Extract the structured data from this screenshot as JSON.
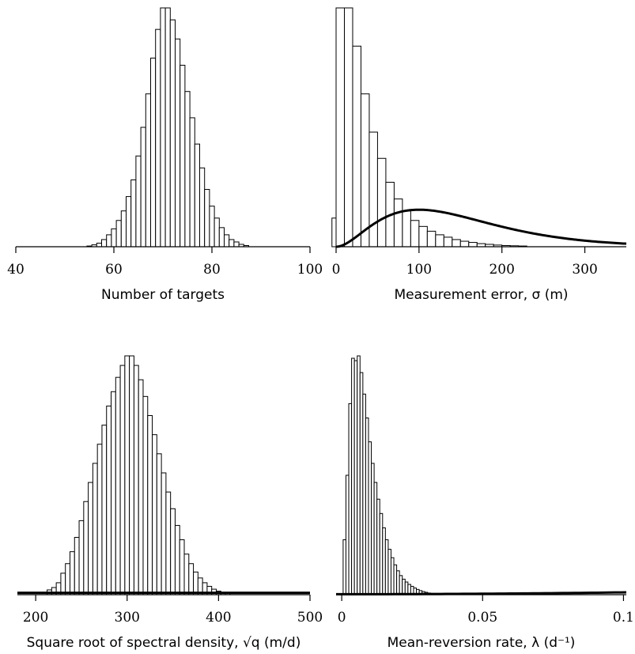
{
  "chart_data": [
    {
      "type": "bar",
      "panel": "top-left",
      "xlabel": "Number of targets",
      "xlim": [
        40,
        100
      ],
      "xticks": [
        40,
        60,
        80,
        100
      ],
      "bin_width": 1,
      "bins": [
        [
          55,
          0.3
        ],
        [
          56,
          0.8
        ],
        [
          57,
          1.5
        ],
        [
          58,
          3
        ],
        [
          59,
          5
        ],
        [
          60,
          7.5
        ],
        [
          61,
          11
        ],
        [
          62,
          15
        ],
        [
          63,
          21
        ],
        [
          64,
          28
        ],
        [
          65,
          38
        ],
        [
          66,
          50
        ],
        [
          67,
          64
        ],
        [
          68,
          79
        ],
        [
          69,
          91
        ],
        [
          70,
          100
        ],
        [
          71,
          100
        ],
        [
          72,
          95
        ],
        [
          73,
          87
        ],
        [
          74,
          76
        ],
        [
          75,
          65
        ],
        [
          76,
          54
        ],
        [
          77,
          43
        ],
        [
          78,
          33
        ],
        [
          79,
          24
        ],
        [
          80,
          17
        ],
        [
          81,
          12
        ],
        [
          82,
          8
        ],
        [
          83,
          5
        ],
        [
          84,
          3
        ],
        [
          85,
          2
        ],
        [
          86,
          1
        ],
        [
          87,
          0.5
        ]
      ],
      "prior_curve": null
    },
    {
      "type": "bar",
      "panel": "top-right",
      "xlabel": "Measurement error, σ (m)",
      "xlim": [
        0,
        350
      ],
      "xticks": [
        0,
        100,
        200,
        300
      ],
      "bin_width": 10,
      "bins": [
        [
          0,
          12
        ],
        [
          5,
          100
        ],
        [
          15,
          100
        ],
        [
          25,
          84
        ],
        [
          35,
          64
        ],
        [
          45,
          48
        ],
        [
          55,
          37
        ],
        [
          65,
          27
        ],
        [
          75,
          20
        ],
        [
          85,
          15
        ],
        [
          95,
          11
        ],
        [
          105,
          8.5
        ],
        [
          115,
          6.5
        ],
        [
          125,
          5
        ],
        [
          135,
          4
        ],
        [
          145,
          3
        ],
        [
          155,
          2.3
        ],
        [
          165,
          1.8
        ],
        [
          175,
          1.3
        ],
        [
          185,
          1
        ],
        [
          195,
          0.7
        ],
        [
          205,
          0.5
        ],
        [
          215,
          0.4
        ],
        [
          225,
          0.3
        ]
      ],
      "prior_curve": {
        "type": "gamma",
        "shape": 3,
        "scale": 50,
        "peak_height": 15.5
      }
    },
    {
      "type": "bar",
      "panel": "bottom-left",
      "xlabel": "Square root of spectral density, √q (m/d)",
      "xlim": [
        180,
        500
      ],
      "xticks": [
        200,
        300,
        400,
        500
      ],
      "bin_width": 5,
      "bins": [
        [
          215,
          2
        ],
        [
          220,
          3
        ],
        [
          225,
          5
        ],
        [
          230,
          9
        ],
        [
          235,
          13
        ],
        [
          240,
          18
        ],
        [
          245,
          24
        ],
        [
          250,
          31
        ],
        [
          255,
          39
        ],
        [
          260,
          47
        ],
        [
          265,
          55
        ],
        [
          270,
          63
        ],
        [
          275,
          71
        ],
        [
          280,
          79
        ],
        [
          285,
          85
        ],
        [
          290,
          91
        ],
        [
          295,
          96
        ],
        [
          300,
          100
        ],
        [
          305,
          100
        ],
        [
          310,
          96
        ],
        [
          315,
          90
        ],
        [
          320,
          83
        ],
        [
          325,
          75
        ],
        [
          330,
          67
        ],
        [
          335,
          59
        ],
        [
          340,
          51
        ],
        [
          345,
          43
        ],
        [
          350,
          36
        ],
        [
          355,
          29
        ],
        [
          360,
          23
        ],
        [
          365,
          17
        ],
        [
          370,
          13
        ],
        [
          375,
          9.5
        ],
        [
          380,
          7
        ],
        [
          385,
          5
        ],
        [
          390,
          3.5
        ],
        [
          395,
          2.3
        ],
        [
          400,
          1.5
        ],
        [
          405,
          1
        ],
        [
          410,
          0.5
        ]
      ],
      "prior_curve": {
        "type": "flat",
        "height": 0.8
      }
    },
    {
      "type": "bar",
      "panel": "bottom-right",
      "xlabel": "Mean-reversion rate, λ (d⁻¹)",
      "xlim": [
        -0.002,
        0.101
      ],
      "xticks": [
        0,
        0.05,
        0.1
      ],
      "xtick_labels": [
        "0",
        "0.05",
        "0.1"
      ],
      "bin_width": 0.001,
      "bins": [
        [
          0.001,
          23
        ],
        [
          0.002,
          50
        ],
        [
          0.003,
          80
        ],
        [
          0.004,
          99
        ],
        [
          0.005,
          98
        ],
        [
          0.006,
          100
        ],
        [
          0.007,
          93
        ],
        [
          0.008,
          84
        ],
        [
          0.009,
          74
        ],
        [
          0.01,
          64
        ],
        [
          0.011,
          55
        ],
        [
          0.012,
          47
        ],
        [
          0.013,
          40
        ],
        [
          0.014,
          34
        ],
        [
          0.015,
          28
        ],
        [
          0.016,
          23
        ],
        [
          0.017,
          19
        ],
        [
          0.018,
          15.5
        ],
        [
          0.019,
          12.5
        ],
        [
          0.02,
          10
        ],
        [
          0.021,
          8
        ],
        [
          0.022,
          6.5
        ],
        [
          0.023,
          5.3
        ],
        [
          0.024,
          4.3
        ],
        [
          0.025,
          3.5
        ],
        [
          0.026,
          2.8
        ],
        [
          0.027,
          2.2
        ],
        [
          0.028,
          1.7
        ],
        [
          0.029,
          1.3
        ],
        [
          0.03,
          1
        ],
        [
          0.031,
          0.7
        ],
        [
          0.032,
          0.5
        ],
        [
          0.033,
          0.35
        ],
        [
          0.034,
          0.25
        ]
      ],
      "prior_curve": {
        "type": "flat-rising",
        "start": 0.2,
        "end": 1
      }
    }
  ]
}
